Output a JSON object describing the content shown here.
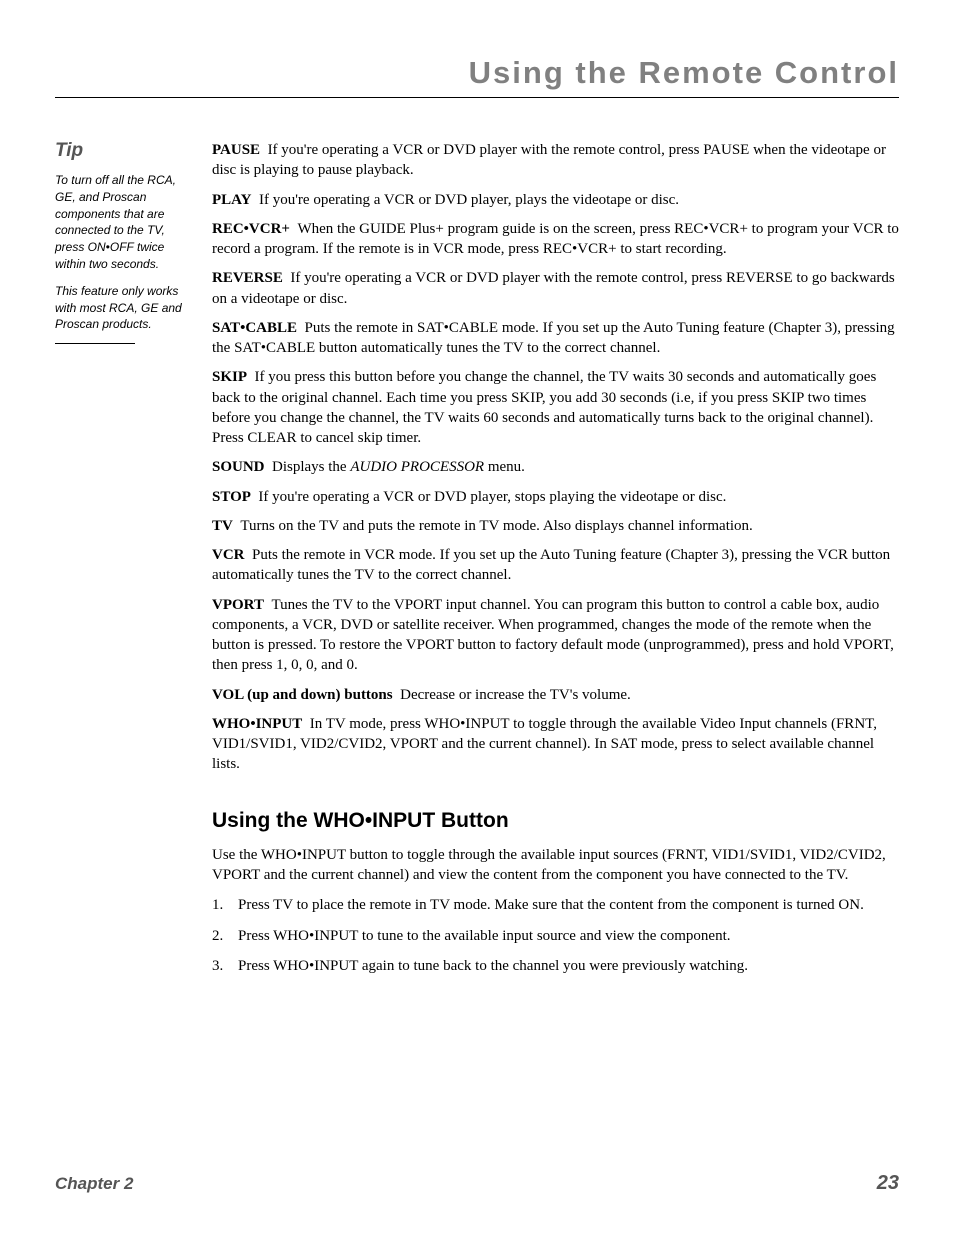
{
  "page_title": "Using the Remote Control",
  "tip": {
    "heading": "Tip",
    "paragraphs": [
      "To turn off all the RCA, GE, and Proscan components that are connected to the TV, press ON•OFF twice within two seconds.",
      "This feature only works with most RCA, GE and Proscan products."
    ]
  },
  "definitions": [
    {
      "term": "PAUSE",
      "text": "If you're operating a VCR or DVD player with the remote control, press PAUSE when the videotape or disc is playing to pause playback."
    },
    {
      "term": "PLAY",
      "text": "If you're operating a VCR or DVD player, plays the videotape or disc."
    },
    {
      "term": "REC•VCR+",
      "text": "When the GUIDE Plus+ program guide is on the screen, press REC•VCR+ to program your VCR to record a program. If the remote is in VCR mode, press REC•VCR+ to start recording."
    },
    {
      "term": "REVERSE",
      "text": "If you're operating a VCR or DVD player with the remote control, press REVERSE to go backwards on a videotape or disc."
    },
    {
      "term": "SAT•CABLE",
      "text": "Puts the remote in SAT•CABLE mode.  If you set up the Auto Tuning feature (Chapter 3), pressing the SAT•CABLE button automatically tunes the TV to the correct channel."
    },
    {
      "term": "SKIP",
      "text": "If you press this button before you change the channel, the TV waits 30 seconds and automatically goes back to the original channel. Each time you press SKIP, you add 30 seconds (i.e, if you press SKIP two times before you change the channel, the TV waits 60 seconds and automatically turns back to the original channel). Press CLEAR to cancel skip timer."
    },
    {
      "term": "SOUND",
      "text": "Displays the ",
      "italic": "AUDIO PROCESSOR",
      "text_after": " menu."
    },
    {
      "term": "STOP",
      "text": "If you're operating a VCR or DVD player, stops playing the videotape or disc."
    },
    {
      "term": "TV",
      "text": "Turns on the TV and puts the remote in TV mode. Also displays channel information."
    },
    {
      "term": "VCR",
      "text": "Puts the remote in VCR mode. If you set up the Auto Tuning feature (Chapter 3), pressing the VCR button automatically tunes the TV to the correct channel."
    },
    {
      "term": "VPORT",
      "text": "Tunes the TV to the VPORT input channel. You can program this button to control a cable box, audio components, a VCR, DVD or satellite receiver. When programmed, changes the mode of the remote when the button is pressed. To restore the VPORT button to factory default mode (unprogrammed), press and hold VPORT, then press 1, 0, 0, and 0."
    },
    {
      "term": "VOL (up and down) buttons",
      "text": "Decrease or increase the TV's volume."
    },
    {
      "term": "WHO•INPUT",
      "text": "In TV mode, press WHO•INPUT to toggle through the available Video Input channels (FRNT, VID1/SVID1, VID2/CVID2, VPORT and the current channel). In SAT mode, press to select available channel lists."
    }
  ],
  "section": {
    "heading": "Using the WHO•INPUT Button",
    "intro": "Use the WHO•INPUT button to toggle through the available input sources (FRNT, VID1/SVID1, VID2/CVID2, VPORT and the current channel) and view the content from the component you have connected to the TV.",
    "steps": [
      "Press TV to place the remote in TV mode. Make sure that the content from the component is turned ON.",
      "Press WHO•INPUT to tune to the available input source and view the component.",
      "Press WHO•INPUT again to tune back to the channel you were previously watching."
    ]
  },
  "footer": {
    "chapter": "Chapter 2",
    "page": "23"
  },
  "style": {
    "title_color": "#808080",
    "title_fontsize": 31,
    "tip_label_color": "#555555",
    "body_fontsize": 15,
    "footer_color": "#555555",
    "background": "#ffffff"
  }
}
